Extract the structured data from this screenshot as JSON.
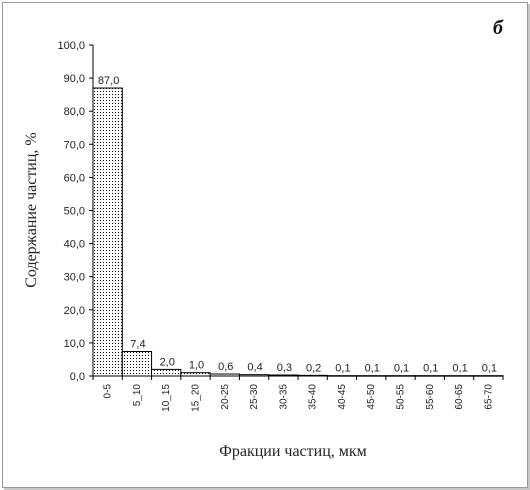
{
  "panel_label": "б",
  "chart_data": {
    "type": "bar",
    "categories": [
      "0-5",
      "5_10",
      "10_15",
      "15_20",
      "20-25",
      "25-30",
      "30-35",
      "35-40",
      "40-45",
      "45-50",
      "50-55",
      "55-60",
      "60-65",
      "65-70"
    ],
    "values": [
      87.0,
      7.4,
      2.0,
      1.0,
      0.6,
      0.4,
      0.3,
      0.2,
      0.1,
      0.1,
      0.1,
      0.1,
      0.1,
      0.1
    ],
    "data_labels": [
      "87,0",
      "7,4",
      "2,0",
      "1,0",
      "0,6",
      "0,4",
      "0,3",
      "0,2",
      "0,1",
      "0,1",
      "0,1",
      "0,1",
      "0,1",
      "0,1"
    ],
    "xlabel": "Фракции частиц, мкм",
    "ylabel": "Содержание частиц, %",
    "ylim": [
      0,
      100
    ],
    "yticks": [
      0,
      10,
      20,
      30,
      40,
      50,
      60,
      70,
      80,
      90,
      100
    ],
    "ytick_labels": [
      "0,0",
      "10,0",
      "20,0",
      "30,0",
      "40,0",
      "50,0",
      "60,0",
      "70,0",
      "80,0",
      "90,0",
      "100,0"
    ],
    "grid": false,
    "bar_fill": "dotted",
    "bar_color": "#000000"
  }
}
